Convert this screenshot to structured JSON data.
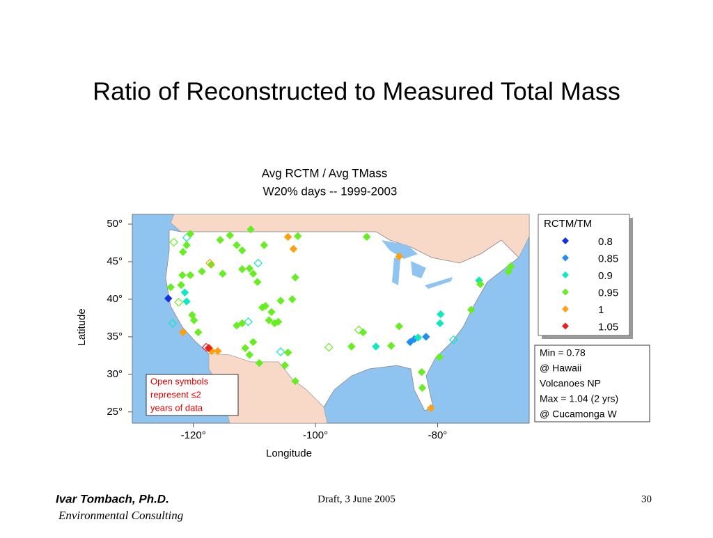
{
  "header": {
    "title": "Ratio of Reconstructed to Measured Total Mass"
  },
  "chart_data": {
    "type": "scatter",
    "title": "Avg RCTM / Avg TMass",
    "subtitle": "W20% days -- 1999-2003",
    "x_label": "Longitude",
    "y_label": "Latitude",
    "xlim": [
      -130,
      -65
    ],
    "ylim": [
      23.5,
      51.3
    ],
    "xticks": [
      {
        "value": -120,
        "label": "-120°"
      },
      {
        "value": -100,
        "label": "-100°"
      },
      {
        "value": -80,
        "label": "-80°"
      }
    ],
    "yticks": [
      {
        "value": 50,
        "label": "50°"
      },
      {
        "value": 45,
        "label": "45°"
      },
      {
        "value": 40,
        "label": "40°"
      },
      {
        "value": 35,
        "label": "35°"
      },
      {
        "value": 30,
        "label": "30°"
      },
      {
        "value": 25,
        "label": "25°"
      }
    ],
    "legend_title": "RCTM/TM",
    "legend": "right",
    "series": [
      {
        "name": "0.8",
        "color": "#1030e8",
        "x": [
          -124.1
        ],
        "y": [
          40.1
        ],
        "open": [
          false
        ]
      },
      {
        "name": "0.85",
        "color": "#1e90f0",
        "x": [
          -83.8,
          -81.9,
          -84.5
        ],
        "y": [
          34.7,
          35.0,
          34.3
        ],
        "open": [
          false,
          false,
          false
        ]
      },
      {
        "name": "0.9",
        "color": "#10e8c0",
        "x": [
          -121.4,
          -121.1,
          -111.0,
          -90.1,
          -79.6,
          -79.5,
          -73.2,
          -77.4,
          -83.2,
          -121.1,
          -123.4,
          -109.4,
          -105.7
        ],
        "y": [
          40.9,
          39.7,
          37.0,
          33.7,
          36.8,
          38.0,
          42.5,
          34.6,
          34.9,
          48.2,
          36.8,
          44.8,
          33.0
        ],
        "open": [
          false,
          false,
          true,
          false,
          false,
          false,
          false,
          true,
          false,
          true,
          true,
          true,
          true
        ]
      },
      {
        "name": "0.95",
        "color": "#66ee22",
        "x": [
          -120.5,
          -121.1,
          -121.7,
          -121.8,
          -122.0,
          -120.5,
          -123.7,
          -118.6,
          -115.2,
          -114.0,
          -112.9,
          -112.0,
          -110.8,
          -110.2,
          -109.5,
          -112.0,
          -108.4,
          -108.2,
          -107.2,
          -107.6,
          -106.7,
          -106.1,
          -112.9,
          -112.0,
          -111.5,
          -110.8,
          -109.2,
          -104.5,
          -103.3,
          -94.1,
          -92.2,
          -86.3,
          -87.6,
          -82.6,
          -79.7,
          -82.5,
          -74.5,
          -68.0,
          -68.4,
          -73.0,
          -91.6,
          -110.6,
          -120.2,
          -119.9,
          -115.6,
          -119.2,
          -117.1,
          -103.8,
          -105.7,
          -103.3,
          -108.7,
          -110.2,
          -105.0,
          -102.9,
          -123.2,
          -122.4,
          -97.8,
          -92.9
        ],
        "y": [
          48.7,
          47.2,
          46.3,
          43.2,
          41.9,
          43.2,
          41.6,
          43.7,
          43.4,
          48.5,
          47.2,
          46.5,
          44.1,
          43.4,
          42.3,
          44.0,
          47.2,
          39.1,
          38.3,
          37.2,
          36.8,
          37.0,
          36.5,
          36.8,
          33.5,
          32.6,
          31.5,
          32.9,
          29.1,
          33.7,
          35.6,
          36.4,
          33.8,
          30.3,
          32.3,
          28.2,
          38.6,
          44.4,
          43.7,
          42.0,
          48.3,
          49.3,
          37.9,
          37.2,
          47.9,
          35.6,
          44.6,
          40.0,
          39.8,
          42.9,
          38.9,
          34.3,
          31.2,
          48.4,
          47.6,
          39.6,
          33.6,
          35.9
        ],
        "open": [
          false,
          false,
          false,
          false,
          false,
          false,
          false,
          false,
          false,
          false,
          false,
          false,
          false,
          false,
          false,
          false,
          false,
          false,
          false,
          false,
          false,
          false,
          false,
          false,
          false,
          false,
          false,
          false,
          false,
          false,
          false,
          false,
          false,
          false,
          false,
          false,
          false,
          false,
          false,
          false,
          false,
          false,
          false,
          false,
          false,
          false,
          false,
          false,
          false,
          false,
          false,
          false,
          false,
          false,
          true,
          true,
          true,
          true
        ]
      },
      {
        "name": "1",
        "color": "#ffa010",
        "x": [
          -104.5,
          -103.6,
          -86.3,
          -117.0,
          -116.0,
          -81.1,
          -121.7,
          -117.4,
          -117.3
        ],
        "y": [
          48.3,
          46.7,
          45.7,
          33.1,
          33.1,
          25.5,
          35.6,
          33.5,
          44.8
        ],
        "open": [
          false,
          false,
          false,
          false,
          false,
          false,
          false,
          false,
          true
        ]
      },
      {
        "name": "1.05",
        "color": "#e82020",
        "x": [
          -117.9,
          -117.5
        ],
        "y": [
          33.6,
          33.5
        ],
        "open": [
          true,
          false
        ]
      }
    ],
    "annotation": [
      "Open symbols",
      "represent ≤2",
      "years of data"
    ],
    "stats": [
      "Min = 0.78",
      "@ Hawaii",
      "Volcanoes NP",
      "Max = 1.04 (2 yrs)",
      "@ Cucamonga W"
    ]
  },
  "footer": {
    "author": "Ivar Tombach, Ph.D.",
    "org": "Environmental Consulting",
    "draft": "Draft, 3 June 2005",
    "page": "30"
  }
}
